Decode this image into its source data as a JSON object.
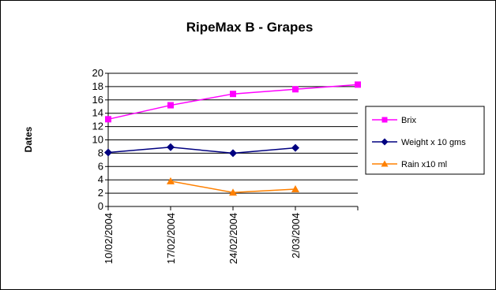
{
  "chart_data": {
    "type": "line",
    "title": "RipeMax B - Grapes",
    "ylabel": "Dates",
    "xlabel": "",
    "ylim": [
      0,
      20
    ],
    "y_ticks": [
      0,
      2,
      4,
      6,
      8,
      10,
      12,
      14,
      16,
      18,
      20
    ],
    "categories": [
      "10/02/2004",
      "17/02/2004",
      "24/02/2004",
      "2/03/2004",
      ""
    ],
    "grid": "horizontal",
    "legend_position": "right",
    "series": [
      {
        "name": "Brix",
        "color": "#ff00ff",
        "marker": "square",
        "values": [
          13.1,
          15.2,
          16.9,
          17.6,
          18.3
        ]
      },
      {
        "name": "Weight x 10 gms",
        "color": "#000080",
        "marker": "diamond",
        "values": [
          8.1,
          8.9,
          8.0,
          8.8,
          null
        ]
      },
      {
        "name": "Rain x10 ml",
        "color": "#ff8000",
        "marker": "triangle",
        "values": [
          null,
          3.8,
          2.1,
          2.6,
          null
        ]
      }
    ]
  }
}
